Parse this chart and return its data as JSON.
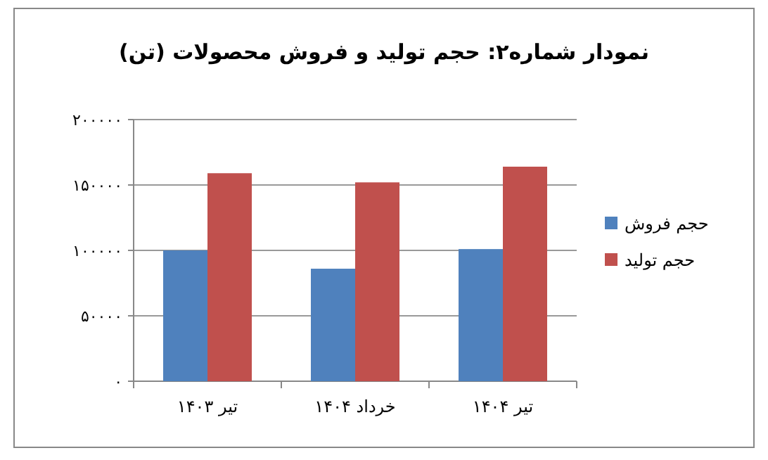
{
  "chart_data": {
    "type": "bar",
    "title": "نمودار شماره۲: حجم تولید و فروش محصولات (تن)",
    "categories": [
      "تیر ۱۴۰۳",
      "خرداد ۱۴۰۴",
      "تیر ۱۴۰۴"
    ],
    "series": [
      {
        "name": "حجم فروش",
        "color": "#4f81bd",
        "values": [
          100000,
          86000,
          101000
        ]
      },
      {
        "name": "حجم تولید",
        "color": "#c0504d",
        "values": [
          159000,
          152000,
          164000
        ]
      }
    ],
    "ylim": [
      0,
      200000
    ],
    "yticks": [
      {
        "value": 0,
        "label": "۰"
      },
      {
        "value": 50000,
        "label": "۵۰۰۰۰"
      },
      {
        "value": 100000,
        "label": "۱۰۰۰۰۰"
      },
      {
        "value": 150000,
        "label": "۱۵۰۰۰۰"
      },
      {
        "value": 200000,
        "label": "۲۰۰۰۰۰"
      }
    ],
    "grid": "y",
    "legend": "right"
  }
}
